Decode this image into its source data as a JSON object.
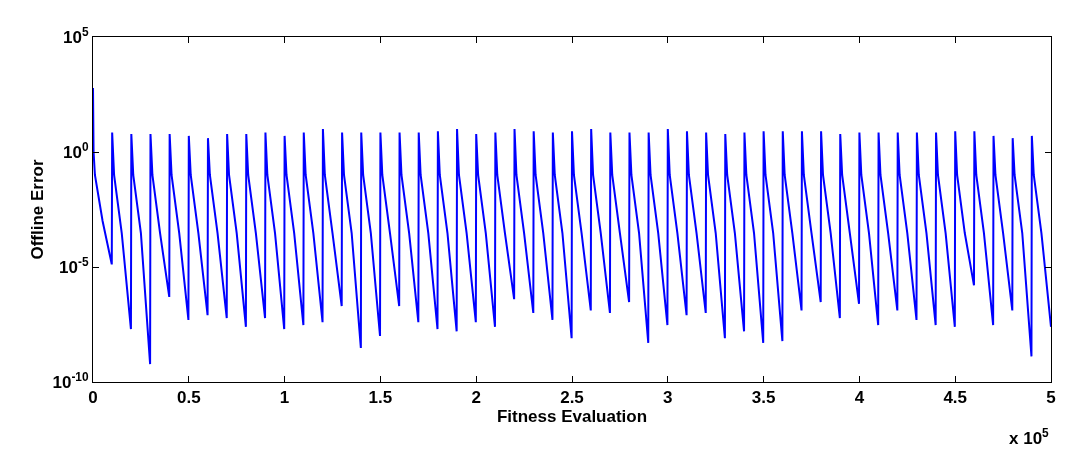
{
  "chart_data": {
    "type": "line",
    "xlabel": "Fitness Evaluation",
    "ylabel": "Offline Error",
    "annotations": [
      "x 10$^{5}$"
    ],
    "log": "y",
    "marker": "none",
    "line_style": "solid",
    "xlim": [
      0,
      5
    ],
    "xticks": [
      0,
      0.5,
      1,
      1.5,
      2,
      2.5,
      3,
      3.5,
      4,
      4.5,
      5
    ],
    "ylim": [
      1e-10,
      100000
    ],
    "yticks": [
      {
        "value": 1e-10,
        "label": "10$^{-10}$"
      },
      {
        "value": 1e-05,
        "label": "10$^{-5}$"
      },
      {
        "value": 1,
        "label": "10$^{0}$"
      },
      {
        "value": 100000,
        "label": "10$^{5}$"
      }
    ],
    "series": [
      {
        "color": "#0000ff",
        "x": [
          0,
          0.003,
          0.01,
          0.05,
          0.098,
          0.1,
          0.11,
          0.15,
          0.198,
          0.2,
          0.21,
          0.25,
          0.298,
          0.3,
          0.31,
          0.35,
          0.398,
          0.4,
          0.41,
          0.45,
          0.498,
          0.5,
          0.51,
          0.55,
          0.598,
          0.6,
          0.61,
          0.65,
          0.698,
          0.7,
          0.71,
          0.75,
          0.798,
          0.8,
          0.81,
          0.85,
          0.898,
          0.9,
          0.91,
          0.95,
          0.998,
          1.0,
          1.01,
          1.05,
          1.098,
          1.1,
          1.11,
          1.15,
          1.198,
          1.2,
          1.21,
          1.25,
          1.298,
          1.3,
          1.31,
          1.35,
          1.398,
          1.4,
          1.41,
          1.45,
          1.498,
          1.5,
          1.51,
          1.55,
          1.598,
          1.6,
          1.61,
          1.65,
          1.698,
          1.7,
          1.71,
          1.75,
          1.798,
          1.8,
          1.81,
          1.85,
          1.898,
          1.9,
          1.91,
          1.95,
          1.998,
          2.0,
          2.01,
          2.05,
          2.098,
          2.1,
          2.11,
          2.15,
          2.198,
          2.2,
          2.21,
          2.25,
          2.298,
          2.3,
          2.31,
          2.35,
          2.398,
          2.4,
          2.41,
          2.45,
          2.498,
          2.5,
          2.51,
          2.55,
          2.598,
          2.6,
          2.61,
          2.65,
          2.698,
          2.7,
          2.71,
          2.75,
          2.798,
          2.8,
          2.81,
          2.85,
          2.898,
          2.9,
          2.91,
          2.95,
          2.998,
          3.0,
          3.01,
          3.05,
          3.098,
          3.1,
          3.11,
          3.15,
          3.198,
          3.2,
          3.21,
          3.25,
          3.298,
          3.3,
          3.31,
          3.35,
          3.398,
          3.4,
          3.41,
          3.45,
          3.498,
          3.5,
          3.51,
          3.55,
          3.598,
          3.6,
          3.61,
          3.65,
          3.698,
          3.7,
          3.71,
          3.75,
          3.798,
          3.8,
          3.81,
          3.85,
          3.898,
          3.9,
          3.91,
          3.95,
          3.998,
          4.0,
          4.01,
          4.05,
          4.098,
          4.1,
          4.11,
          4.15,
          4.198,
          4.2,
          4.21,
          4.25,
          4.298,
          4.3,
          4.31,
          4.35,
          4.398,
          4.4,
          4.41,
          4.45,
          4.498,
          4.5,
          4.51,
          4.55,
          4.598,
          4.6,
          4.61,
          4.65,
          4.698,
          4.7,
          4.71,
          4.75,
          4.798,
          4.8,
          4.81,
          4.85,
          4.898,
          4.9,
          4.91,
          4.95,
          5.0
        ],
        "values": [
          600,
          1,
          0.1,
          0.001,
          1.3e-05,
          7,
          0.1,
          0.0003,
          2e-08,
          6,
          0.1,
          0.0003,
          6e-10,
          6,
          0.1,
          0.0003,
          5e-07,
          6,
          0.1,
          0.0003,
          5e-08,
          5,
          0.1,
          0.0003,
          8e-08,
          4,
          0.1,
          0.0003,
          6e-08,
          6,
          0.1,
          0.0003,
          2.5e-08,
          6,
          0.1,
          0.0003,
          6e-08,
          7,
          0.1,
          0.0003,
          2e-08,
          5,
          0.1,
          0.0003,
          3e-08,
          7,
          0.1,
          0.0003,
          4e-08,
          10,
          0.1,
          0.0003,
          2e-07,
          7,
          0.1,
          0.0003,
          3e-09,
          7,
          0.1,
          0.0003,
          1e-08,
          7,
          0.1,
          0.0003,
          2e-07,
          7,
          0.1,
          0.0003,
          4e-08,
          7,
          0.1,
          0.0003,
          2e-08,
          8,
          0.1,
          0.0003,
          1.6e-08,
          10,
          0.1,
          0.0003,
          4e-08,
          6,
          0.1,
          0.0003,
          2.5e-08,
          7,
          0.1,
          0.0003,
          4e-07,
          10,
          0.1,
          0.0003,
          1e-07,
          8,
          0.1,
          0.0003,
          5e-08,
          7,
          0.1,
          0.0003,
          8e-09,
          8,
          0.1,
          0.0003,
          1.3e-07,
          10,
          0.1,
          0.0003,
          1e-07,
          7,
          0.1,
          0.0003,
          3e-07,
          7,
          0.1,
          0.0003,
          5e-09,
          7,
          0.1,
          0.0003,
          3e-08,
          10,
          0.1,
          0.0003,
          8e-08,
          8,
          0.1,
          0.0003,
          1e-07,
          7,
          0.1,
          0.0003,
          8e-09,
          6,
          0.1,
          0.0003,
          1.6e-08,
          7,
          0.1,
          0.0003,
          5e-09,
          8,
          0.1,
          0.0003,
          6e-09,
          8,
          0.1,
          0.0003,
          1.3e-07,
          8,
          0.1,
          0.0003,
          3e-07,
          8,
          0.1,
          0.0003,
          6e-08,
          6,
          0.1,
          0.0003,
          2.5e-07,
          7,
          0.1,
          0.0003,
          3e-08,
          7,
          0.1,
          0.0003,
          1.3e-07,
          7,
          0.1,
          0.0003,
          5e-08,
          7,
          0.1,
          0.0003,
          3e-08,
          7,
          0.1,
          0.0003,
          2.5e-08,
          8,
          0.1,
          0.0003,
          1.6e-06,
          8,
          0.1,
          0.0003,
          3e-08,
          5,
          0.1,
          0.0003,
          1.3e-07,
          4,
          0.1,
          0.0003,
          1.3e-09,
          5,
          0.1,
          0.0003,
          2.5e-08
        ]
      }
    ]
  }
}
